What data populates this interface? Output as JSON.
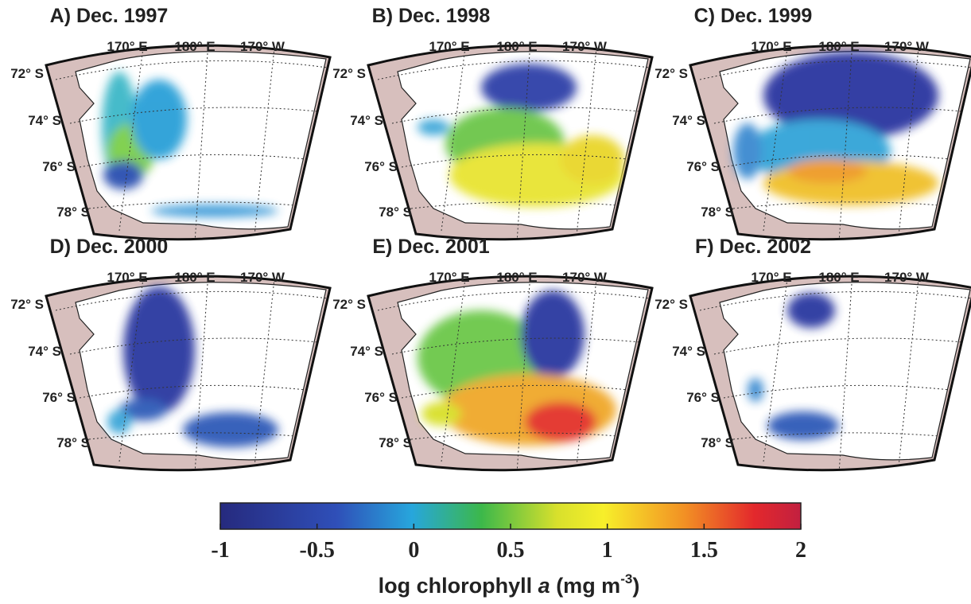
{
  "panels": [
    {
      "title": "A) Dec. 1997"
    },
    {
      "title": "B) Dec. 1998"
    },
    {
      "title": "C) Dec. 1999"
    },
    {
      "title": "D) Dec. 2000"
    },
    {
      "title": "E) Dec. 2001"
    },
    {
      "title": "F) Dec. 2002"
    }
  ],
  "map": {
    "lon_labels": [
      "170° E",
      "180° E",
      "170° W"
    ],
    "lat_labels": [
      "72° S",
      "74° S",
      "76° S",
      "78° S"
    ]
  },
  "colorbar": {
    "lim": [
      -1,
      2
    ],
    "ticks": [
      -1,
      -0.5,
      0,
      0.5,
      1,
      1.5,
      2
    ],
    "label": {
      "text": "log chlorophyll ",
      "italic": "a",
      "unit": " (mg m",
      "exponent": "-3",
      "close": ")"
    }
  }
}
